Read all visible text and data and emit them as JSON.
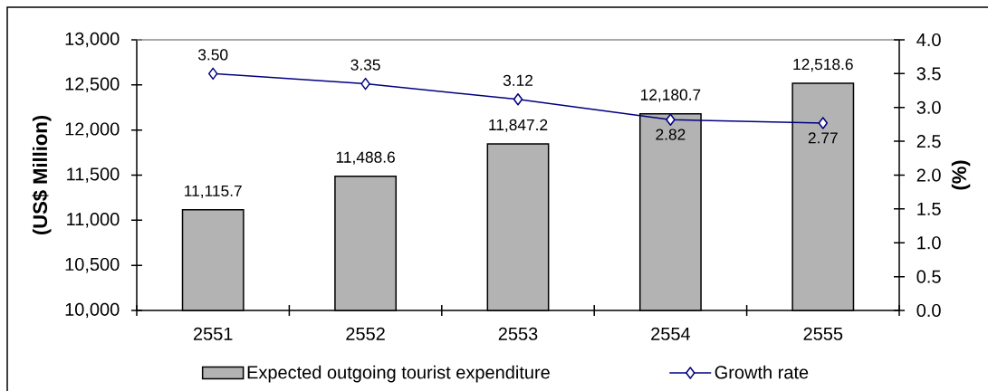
{
  "chart_data": {
    "type": "bar",
    "categories": [
      "2551",
      "2552",
      "2553",
      "2554",
      "2555"
    ],
    "series": [
      {
        "name": "Expected outgoing tourist expenditure",
        "color": "#b3b3b3",
        "values": [
          11115.7,
          11488.6,
          11847.2,
          12180.7,
          12518.6
        ],
        "value_labels": [
          "11,115.7",
          "11,488.6",
          "11,847.2",
          "12,180.7",
          "12,518.6"
        ]
      },
      {
        "name": "Growth rate",
        "type": "line",
        "axis": "y2",
        "color": "#000080",
        "marker": "diamond",
        "values": [
          3.5,
          3.35,
          3.12,
          2.82,
          2.77
        ],
        "value_labels": [
          "3.50",
          "3.35",
          "3.12",
          "2.82",
          "2.77"
        ]
      }
    ],
    "ylabel": "(US$ Million)",
    "y2label": "(%)",
    "ylim": [
      10000,
      13000
    ],
    "yticks": [
      {
        "value": 10000,
        "label": "10,000"
      },
      {
        "value": 10500,
        "label": "10,500"
      },
      {
        "value": 11000,
        "label": "11,000"
      },
      {
        "value": 11500,
        "label": "11,500"
      },
      {
        "value": 12000,
        "label": "12,000"
      },
      {
        "value": 12500,
        "label": "12,500"
      },
      {
        "value": 13000,
        "label": "13,000"
      }
    ],
    "y2lim": [
      0,
      4
    ],
    "y2ticks": [
      {
        "value": 0,
        "label": "0.0"
      },
      {
        "value": 0.5,
        "label": "0.5"
      },
      {
        "value": 1,
        "label": "1.0"
      },
      {
        "value": 1.5,
        "label": "1.5"
      },
      {
        "value": 2,
        "label": "2.0"
      },
      {
        "value": 2.5,
        "label": "2.5"
      },
      {
        "value": 3,
        "label": "3.0"
      },
      {
        "value": 3.5,
        "label": "3.5"
      },
      {
        "value": 4,
        "label": "4.0"
      }
    ],
    "legend": "bottom"
  }
}
